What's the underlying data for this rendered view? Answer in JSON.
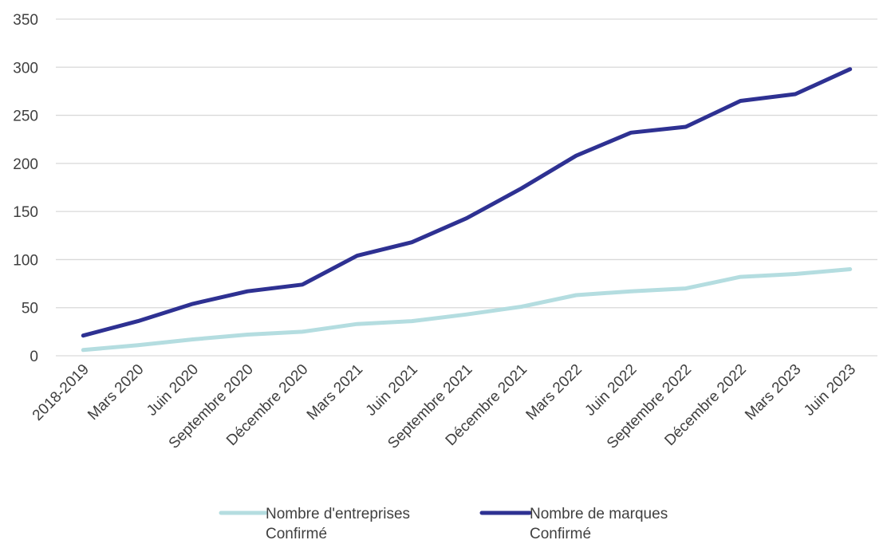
{
  "chart_data": {
    "type": "line",
    "title": "",
    "xlabel": "",
    "ylabel": "",
    "ylim": [
      0,
      350
    ],
    "yticks": [
      0,
      50,
      100,
      150,
      200,
      250,
      300,
      350
    ],
    "grid": true,
    "legend_position": "bottom",
    "categories": [
      "2018-2019",
      "Mars 2020",
      "Juin 2020",
      "Septembre 2020",
      "Décembre 2020",
      "Mars 2021",
      "Juin 2021",
      "Septembre 2021",
      "Décembre 2021",
      "Mars 2022",
      "Juin 2022",
      "Septembre 2022",
      "Décembre 2022",
      "Mars 2023",
      "Juin 2023"
    ],
    "series": [
      {
        "name": "Nombre d'entreprises Confirmé",
        "legend_lines": [
          "Nombre d'entreprises",
          "Confirmé"
        ],
        "color": "#b4dde0",
        "values": [
          6,
          11,
          17,
          22,
          25,
          33,
          36,
          43,
          51,
          63,
          67,
          70,
          82,
          85,
          90
        ]
      },
      {
        "name": "Nombre de marques Confirmé",
        "legend_lines": [
          "Nombre de marques",
          "Confirmé"
        ],
        "color": "#2e3192",
        "values": [
          21,
          36,
          54,
          67,
          74,
          104,
          118,
          143,
          174,
          208,
          232,
          238,
          265,
          272,
          298
        ]
      }
    ]
  }
}
